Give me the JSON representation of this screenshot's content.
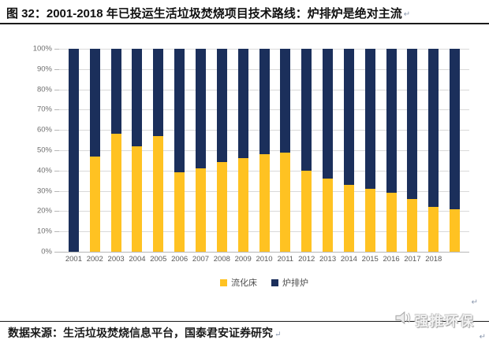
{
  "header": {
    "title": "图 32：2001-2018 年已投运生活垃圾焚烧项目技术路线：炉排炉是绝对主流",
    "return_mark": "↵"
  },
  "chart_data": {
    "type": "bar",
    "stacked": true,
    "percent_axis": true,
    "categories": [
      "2001",
      "2002",
      "2003",
      "2004",
      "2005",
      "2006",
      "2007",
      "2008",
      "2009",
      "2010",
      "2011",
      "2012",
      "2013",
      "2014",
      "2015",
      "2016",
      "2017",
      "2018",
      ""
    ],
    "series": [
      {
        "name": "流化床",
        "color": "#FFC222",
        "values": [
          0,
          47,
          58,
          52,
          57,
          39,
          41,
          44,
          46,
          48,
          49,
          40,
          36,
          33,
          31,
          29,
          26,
          22,
          21
        ]
      },
      {
        "name": "炉排炉",
        "color": "#1B2F5B",
        "values": [
          100,
          53,
          42,
          48,
          43,
          61,
          59,
          56,
          54,
          52,
          51,
          60,
          64,
          67,
          69,
          71,
          74,
          78,
          79
        ]
      }
    ],
    "ylim": [
      0,
      100
    ],
    "ytick_labels": [
      "100%",
      "90%",
      "80%",
      "70%",
      "60%",
      "50%",
      "40%",
      "30%",
      "20%",
      "10%",
      "0%"
    ],
    "grid": true,
    "legend_position": "bottom"
  },
  "footer": {
    "source_text": "数据来源：生活垃圾焚烧信息平台，国泰君安证券研究",
    "return_mark": "↵"
  },
  "watermark": {
    "icon": "speaker-icon",
    "text": "强推环保",
    "return_mark_top": "↵",
    "return_mark_bottom": "↵"
  }
}
